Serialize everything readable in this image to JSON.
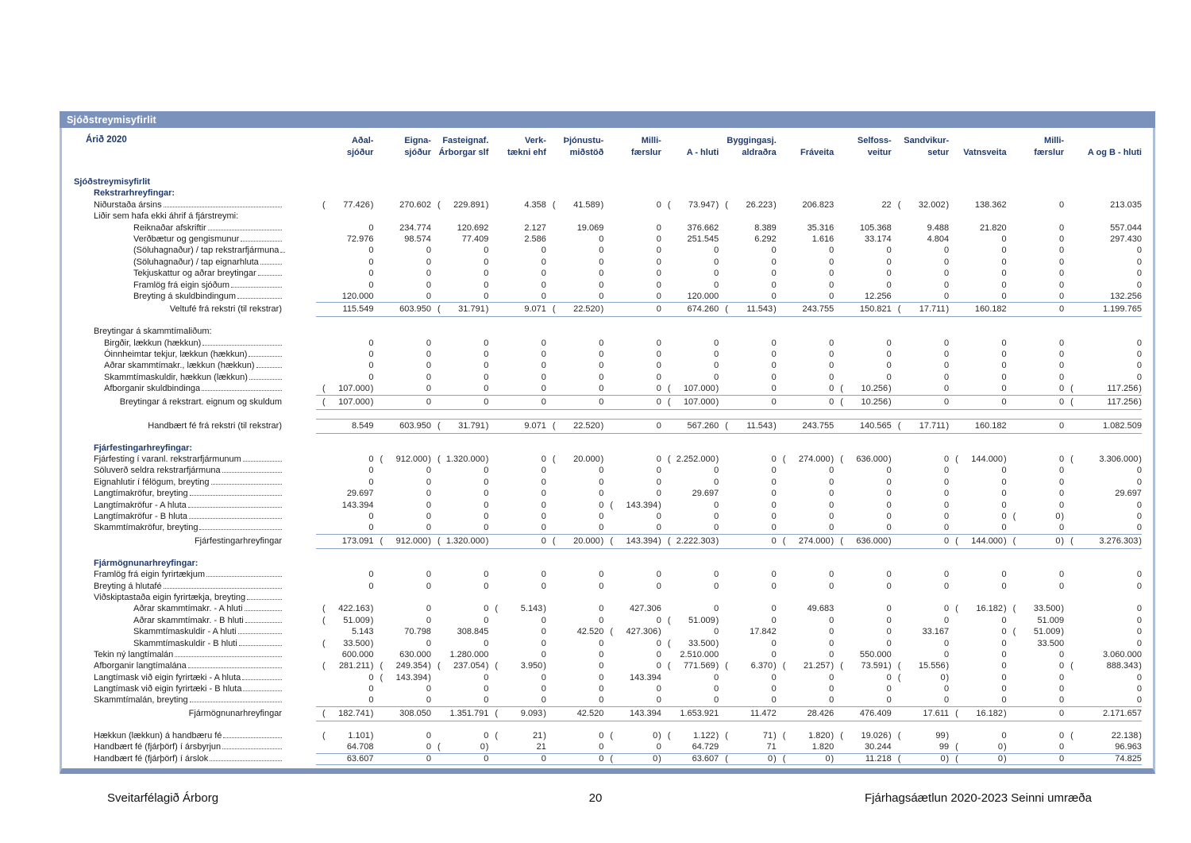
{
  "title_bar": "Sjóðstreymisyfirlit",
  "year_label": "Árið 2020",
  "colors": {
    "title_bar_bg": "#7b93bc",
    "frame": "#aebfd9",
    "navy": "#1f3a6e",
    "rule": "#8aa3c6"
  },
  "columns": [
    {
      "line1": "Aðal-",
      "line2": "sjóður"
    },
    {
      "line1": "Eigna-",
      "line2": "sjóður"
    },
    {
      "line1": "Fasteignaf.",
      "line2": "Árborgar slf"
    },
    {
      "line1": "Verk-",
      "line2": "tækni ehf"
    },
    {
      "line1": "Þjónustu-",
      "line2": "miðstöð"
    },
    {
      "line1": "Milli-",
      "line2": "færslur"
    },
    {
      "line1": "",
      "line2": "A - hluti"
    },
    {
      "line1": "Byggingasj.",
      "line2": "aldraðra"
    },
    {
      "line1": "",
      "line2": "Fráveita"
    },
    {
      "line1": "Selfoss-",
      "line2": "veitur"
    },
    {
      "line1": "Sandvikur-",
      "line2": "setur"
    },
    {
      "line1": "",
      "line2": "Vatnsveita"
    },
    {
      "line1": "Milli-",
      "line2": "færslur"
    },
    {
      "line1": "",
      "line2": "A og B - hluti"
    }
  ],
  "rows": [
    {
      "type": "section",
      "indent": 0,
      "label": "Sjóðstreymisyfirlit"
    },
    {
      "type": "section",
      "indent": 1,
      "label": "Rekstrarhreyfingar:"
    },
    {
      "type": "item",
      "indent": 1,
      "label": "Niðurstaða ársins",
      "values": [
        "( 77.426 )",
        "270.602",
        "( 229.891 )",
        "4.358",
        "( 41.589 )",
        "0",
        "( 73.947 )",
        "( 26.223 )",
        "206.823",
        "22",
        "( 32.002 )",
        "138.362",
        "0",
        "213.035"
      ]
    },
    {
      "type": "label",
      "indent": 1,
      "label": "Liðir sem hafa ekki áhrif á fjárstreymi:"
    },
    {
      "type": "item",
      "indent": 3,
      "label": "Reiknaðar afskriftir",
      "values": [
        "0",
        "234.774",
        "120.692",
        "2.127",
        "19.069",
        "0",
        "376.662",
        "8.389",
        "35.316",
        "105.368",
        "9.488",
        "21.820",
        "0",
        "557.044"
      ]
    },
    {
      "type": "item",
      "indent": 3,
      "label": "Verðbætur og gengismunur",
      "values": [
        "72.976",
        "98.574",
        "77.409",
        "2.586",
        "0",
        "0",
        "251.545",
        "6.292",
        "1.616",
        "33.174",
        "4.804",
        "0",
        "0",
        "297.430"
      ]
    },
    {
      "type": "item",
      "indent": 3,
      "label": "(Söluhagnaður) / tap rekstrarfjármuna",
      "values": [
        "0",
        "0",
        "0",
        "0",
        "0",
        "0",
        "0",
        "0",
        "0",
        "0",
        "0",
        "0",
        "0",
        "0"
      ]
    },
    {
      "type": "item",
      "indent": 3,
      "label": "(Söluhagnaður) / tap eignarhluta",
      "values": [
        "0",
        "0",
        "0",
        "0",
        "0",
        "0",
        "0",
        "0",
        "0",
        "0",
        "0",
        "0",
        "0",
        "0"
      ]
    },
    {
      "type": "item",
      "indent": 3,
      "label": "Tekjuskattur og aðrar breytingar",
      "values": [
        "0",
        "0",
        "0",
        "0",
        "0",
        "0",
        "0",
        "0",
        "0",
        "0",
        "0",
        "0",
        "0",
        "0"
      ]
    },
    {
      "type": "item",
      "indent": 3,
      "label": "Framlög frá eigin sjóðum",
      "values": [
        "0",
        "0",
        "0",
        "0",
        "0",
        "0",
        "0",
        "0",
        "0",
        "0",
        "0",
        "0",
        "0",
        "0"
      ]
    },
    {
      "type": "item",
      "indent": 3,
      "label": "Breyting á skuldbindingum",
      "values": [
        "120.000",
        "0",
        "0",
        "0",
        "0",
        "0",
        "120.000",
        "0",
        "0",
        "12.256",
        "0",
        "0",
        "0",
        "132.256"
      ]
    },
    {
      "type": "total",
      "label": "Veltufé frá rekstri (til rekstrar)",
      "values": [
        "115.549",
        "603.950",
        "( 31.791 )",
        "9.071",
        "( 22.520 )",
        "0",
        "674.260",
        "( 11.543 )",
        "243.755",
        "150.821",
        "( 17.711 )",
        "160.182",
        "0",
        "1.199.765"
      ]
    },
    {
      "type": "spacer"
    },
    {
      "type": "label",
      "indent": 1,
      "label": "Breytingar á skammtímaliðum:"
    },
    {
      "type": "item",
      "indent": 2,
      "label": "Birgðir, lækkun (hækkun)",
      "values": [
        "0",
        "0",
        "0",
        "0",
        "0",
        "0",
        "0",
        "0",
        "0",
        "0",
        "0",
        "0",
        "0",
        "0"
      ]
    },
    {
      "type": "item",
      "indent": 2,
      "label": "Óinnheimtar tekjur, lækkun (hækkun)",
      "values": [
        "0",
        "0",
        "0",
        "0",
        "0",
        "0",
        "0",
        "0",
        "0",
        "0",
        "0",
        "0",
        "0",
        "0"
      ]
    },
    {
      "type": "item",
      "indent": 2,
      "label": "Aðrar skammtímakr., lækkun (hækkun)",
      "values": [
        "0",
        "0",
        "0",
        "0",
        "0",
        "0",
        "0",
        "0",
        "0",
        "0",
        "0",
        "0",
        "0",
        "0"
      ]
    },
    {
      "type": "item",
      "indent": 2,
      "label": "Skammtímaskuldir, hækkun (lækkun)",
      "values": [
        "0",
        "0",
        "0",
        "0",
        "0",
        "0",
        "0",
        "0",
        "0",
        "0",
        "0",
        "0",
        "0",
        "0"
      ]
    },
    {
      "type": "item",
      "indent": 2,
      "label": "Afborganir skuldbindinga",
      "values": [
        "( 107.000 )",
        "0",
        "0",
        "0",
        "0",
        "0",
        "( 107.000 )",
        "0",
        "0",
        "( 10.256 )",
        "0",
        "0",
        "0",
        "( 117.256 )"
      ]
    },
    {
      "type": "total",
      "label": "Breytingar á rekstrart. eignum og skuldum",
      "values": [
        "( 107.000 )",
        "0",
        "0",
        "0",
        "0",
        "0",
        "( 107.000 )",
        "0",
        "0",
        "( 10.256 )",
        "0",
        "0",
        "0",
        "( 117.256 )"
      ]
    },
    {
      "type": "spacer"
    },
    {
      "type": "total",
      "label": "Handbært fé frá rekstri (til rekstrar)",
      "values": [
        "8.549",
        "603.950",
        "( 31.791 )",
        "9.071",
        "( 22.520 )",
        "0",
        "567.260",
        "( 11.543 )",
        "243.755",
        "140.565",
        "( 17.711 )",
        "160.182",
        "0",
        "1.082.509"
      ]
    },
    {
      "type": "spacer"
    },
    {
      "type": "section",
      "indent": 1,
      "label": "Fjárfestingarhreyfingar:"
    },
    {
      "type": "item",
      "indent": 1,
      "label": "Fjárfesting í varanl. rekstrarfjármunum",
      "values": [
        "0",
        "( 912.000 )",
        "( 1.320.000 )",
        "0",
        "( 20.000 )",
        "0",
        "( 2.252.000 )",
        "0",
        "( 274.000 )",
        "( 636.000 )",
        "0",
        "( 144.000 )",
        "0",
        "( 3.306.000 )"
      ]
    },
    {
      "type": "item",
      "indent": 1,
      "label": "Söluverð seldra rekstrarfjármuna",
      "values": [
        "0",
        "0",
        "0",
        "0",
        "0",
        "0",
        "0",
        "0",
        "0",
        "0",
        "0",
        "0",
        "0",
        "0"
      ]
    },
    {
      "type": "item",
      "indent": 1,
      "label": "Eignahlutir í félögum, breyting",
      "values": [
        "0",
        "0",
        "0",
        "0",
        "0",
        "0",
        "0",
        "0",
        "0",
        "0",
        "0",
        "0",
        "0",
        "0"
      ]
    },
    {
      "type": "item",
      "indent": 1,
      "label": "Langtímakröfur, breyting",
      "values": [
        "29.697",
        "0",
        "0",
        "0",
        "0",
        "0",
        "29.697",
        "0",
        "0",
        "0",
        "0",
        "0",
        "0",
        "29.697"
      ]
    },
    {
      "type": "item",
      "indent": 1,
      "label": "Langtímakröfur - A hluta",
      "values": [
        "143.394",
        "0",
        "0",
        "0",
        "0",
        "( 143.394 )",
        "0",
        "0",
        "0",
        "0",
        "0",
        "0",
        "0",
        "0"
      ]
    },
    {
      "type": "item",
      "indent": 1,
      "label": "Langtímakröfur - B hluta",
      "values": [
        "0",
        "0",
        "0",
        "0",
        "0",
        "0",
        "0",
        "0",
        "0",
        "0",
        "0",
        "0",
        "( 0 )",
        "0"
      ]
    },
    {
      "type": "item",
      "indent": 1,
      "label": "Skammtímakröfur, breyting",
      "values": [
        "0",
        "0",
        "0",
        "0",
        "0",
        "0",
        "0",
        "0",
        "0",
        "0",
        "0",
        "0",
        "0",
        "0"
      ]
    },
    {
      "type": "total",
      "label": "Fjárfestingarhreyfingar",
      "values": [
        "173.091",
        "( 912.000 )",
        "( 1.320.000 )",
        "0",
        "( 20.000 )",
        "( 143.394 )",
        "( 2.222.303 )",
        "0",
        "( 274.000 )",
        "( 636.000 )",
        "0",
        "( 144.000 )",
        "( 0 )",
        "( 3.276.303 )"
      ]
    },
    {
      "type": "spacer"
    },
    {
      "type": "section",
      "indent": 1,
      "label": "Fjármögnunarhreyfingar:"
    },
    {
      "type": "item",
      "indent": 1,
      "label": "Framlög frá eigin fyrirtækjum",
      "values": [
        "0",
        "0",
        "0",
        "0",
        "0",
        "0",
        "0",
        "0",
        "0",
        "0",
        "0",
        "0",
        "0",
        "0"
      ]
    },
    {
      "type": "item",
      "indent": 1,
      "label": "Breyting á hlutafé",
      "values": [
        "0",
        "0",
        "0",
        "0",
        "0",
        "0",
        "0",
        "0",
        "0",
        "0",
        "0",
        "0",
        "0",
        "0"
      ]
    },
    {
      "type": "label",
      "indent": 1,
      "label": "Viðskiptastaða eigin fyrirtækja, breyting",
      "leader": true
    },
    {
      "type": "item",
      "indent": 3,
      "label": "Aðrar skammtímakr. - A hluti",
      "values": [
        "( 422.163 )",
        "0",
        "0",
        "( 5.143 )",
        "0",
        "427.306",
        "0",
        "0",
        "49.683",
        "0",
        "0",
        "( 16.182 )",
        "( 33.500 )",
        "0"
      ]
    },
    {
      "type": "item",
      "indent": 3,
      "label": "Aðrar skammtímakr. - B hluti",
      "values": [
        "( 51.009 )",
        "0",
        "0",
        "0",
        "0",
        "0",
        "( 51.009 )",
        "0",
        "0",
        "0",
        "0",
        "0",
        "51.009",
        "0"
      ]
    },
    {
      "type": "item",
      "indent": 3,
      "label": "Skammtímaskuldir - A hluti",
      "values": [
        "5.143",
        "70.798",
        "308.845",
        "0",
        "42.520",
        "( 427.306 )",
        "0",
        "17.842",
        "0",
        "0",
        "33.167",
        "0",
        "( 51.009 )",
        "0"
      ]
    },
    {
      "type": "item",
      "indent": 3,
      "label": "Skammtímaskuldir - B hluti",
      "values": [
        "( 33.500 )",
        "0",
        "0",
        "0",
        "0",
        "0",
        "( 33.500 )",
        "0",
        "0",
        "0",
        "0",
        "0",
        "33.500",
        "0"
      ]
    },
    {
      "type": "item",
      "indent": 1,
      "label": "Tekin ný langtímalán",
      "values": [
        "600.000",
        "630.000",
        "1.280.000",
        "0",
        "0",
        "0",
        "2.510.000",
        "0",
        "0",
        "550.000",
        "0",
        "0",
        "0",
        "3.060.000"
      ]
    },
    {
      "type": "item",
      "indent": 1,
      "label": "Afborganir langtímalána",
      "values": [
        "( 281.211 )",
        "( 249.354 )",
        "( 237.054 )",
        "( 3.950 )",
        "0",
        "0",
        "( 771.569 )",
        "( 6.370 )",
        "( 21.257 )",
        "( 73.591 )",
        "( 15.556 )",
        "0",
        "0",
        "( 888.343 )"
      ]
    },
    {
      "type": "item",
      "indent": 1,
      "label": "Langtímask við eigin fyrirtæki - A hluta",
      "values": [
        "0",
        "( 143.394 )",
        "0",
        "0",
        "0",
        "143.394",
        "0",
        "0",
        "0",
        "0",
        "( 0 )",
        "0",
        "0",
        "0"
      ]
    },
    {
      "type": "item",
      "indent": 1,
      "label": "Langtímask við eigin fyrirtæki - B hluta",
      "values": [
        "0",
        "0",
        "0",
        "0",
        "0",
        "0",
        "0",
        "0",
        "0",
        "0",
        "0",
        "0",
        "0",
        "0"
      ]
    },
    {
      "type": "item",
      "indent": 1,
      "label": "Skammtímalán, breyting",
      "values": [
        "0",
        "0",
        "0",
        "0",
        "0",
        "0",
        "0",
        "0",
        "0",
        "0",
        "0",
        "0",
        "0",
        "0"
      ]
    },
    {
      "type": "total",
      "label": "Fjármögnunarhreyfingar",
      "values": [
        "( 182.741 )",
        "308.050",
        "1.351.791",
        "( 9.093 )",
        "42.520",
        "143.394",
        "1.653.921",
        "11.472",
        "28.426",
        "476.409",
        "17.611",
        "( 16.182 )",
        "0",
        "2.171.657"
      ]
    },
    {
      "type": "spacer"
    },
    {
      "type": "item",
      "indent": 1,
      "label": "Hækkun (lækkun) á handbæru fé",
      "values": [
        "( 1.101 )",
        "0",
        "0",
        "( 21 )",
        "0",
        "( 0 )",
        "( 1.122 )",
        "( 71 )",
        "( 1.820 )",
        "( 19.026 )",
        "( 99 )",
        "0",
        "0",
        "( 22.138 )"
      ]
    },
    {
      "type": "item",
      "indent": 1,
      "label": "Handbært fé (fjárþörf) í ársbyrjun",
      "underline": true,
      "values": [
        "64.708",
        "0",
        "( 0 )",
        "21",
        "0",
        "0",
        "64.729",
        "71",
        "1.820",
        "30.244",
        "99",
        "( 0 )",
        "0",
        "96.963"
      ]
    },
    {
      "type": "item",
      "indent": 1,
      "label": "Handbært fé (fjárþörf) í árslok",
      "underline": true,
      "values": [
        "63.607",
        "0",
        "0",
        "0",
        "0",
        "( 0 )",
        "63.607",
        "( 0 )",
        "( 0 )",
        "11.218",
        "( 0 )",
        "( 0 )",
        "0",
        "74.825"
      ]
    }
  ],
  "footer": {
    "left": "Sveitarfélagið Árborg",
    "page": "20",
    "right": "Fjárhagsáætlun 2020-2023 Seinni umræða"
  }
}
